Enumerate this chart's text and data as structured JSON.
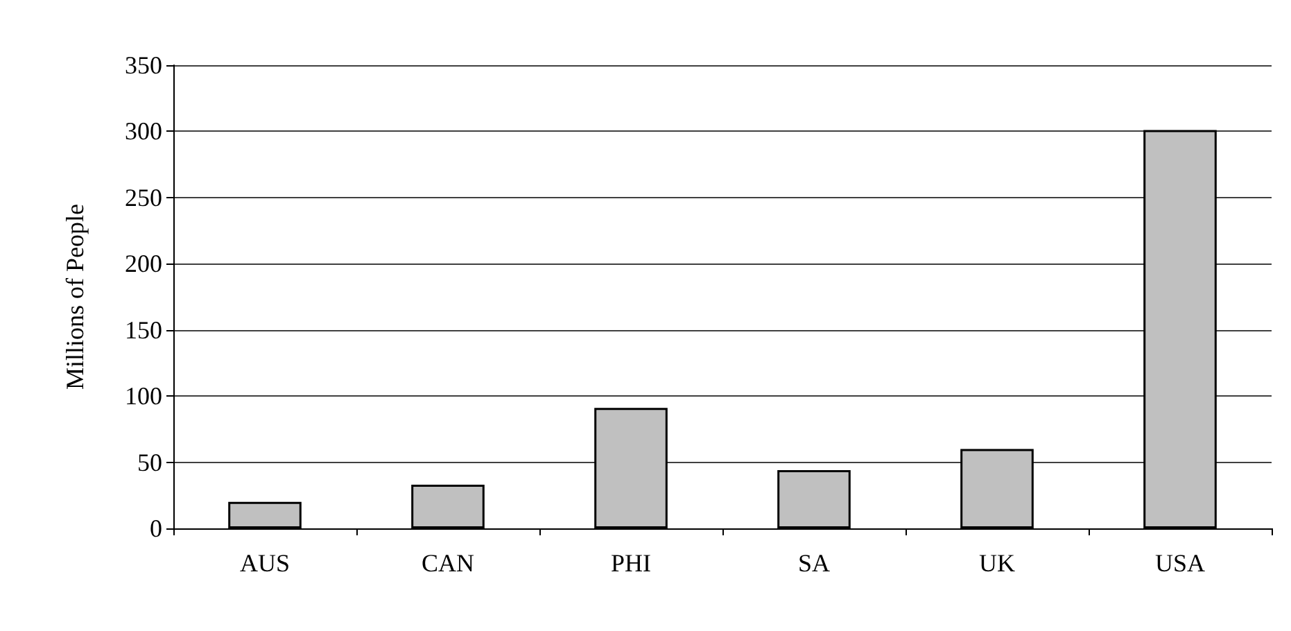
{
  "chart_data": {
    "type": "bar",
    "ylabel": "Millions of People",
    "categories": [
      "AUS",
      "CAN",
      "PHI",
      "SA",
      "UK",
      "USA"
    ],
    "values": [
      20,
      33,
      91,
      44,
      60,
      301
    ],
    "color": "#c0c0c0",
    "ylim": [
      0,
      350
    ],
    "yticks": [
      0,
      50,
      100,
      150,
      200,
      250,
      300,
      350
    ],
    "grid": "y"
  }
}
